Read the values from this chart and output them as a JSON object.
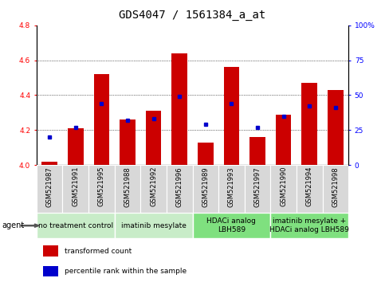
{
  "title": "GDS4047 / 1561384_a_at",
  "samples": [
    "GSM521987",
    "GSM521991",
    "GSM521995",
    "GSM521988",
    "GSM521992",
    "GSM521996",
    "GSM521989",
    "GSM521993",
    "GSM521997",
    "GSM521990",
    "GSM521994",
    "GSM521998"
  ],
  "transformed_count": [
    4.02,
    4.21,
    4.52,
    4.26,
    4.31,
    4.64,
    4.13,
    4.56,
    4.16,
    4.29,
    4.47,
    4.43
  ],
  "percentile_rank": [
    20,
    27,
    44,
    32,
    33,
    49,
    29,
    44,
    27,
    35,
    42,
    41
  ],
  "ylim_left": [
    4.0,
    4.8
  ],
  "ylim_right": [
    0,
    100
  ],
  "yticks_left": [
    4.0,
    4.2,
    4.4,
    4.6,
    4.8
  ],
  "yticks_right": [
    0,
    25,
    50,
    75,
    100
  ],
  "ytick_labels_right": [
    "0",
    "25",
    "50",
    "75",
    "100%"
  ],
  "bar_color": "#cc0000",
  "dot_color": "#0000cc",
  "agent_groups": [
    {
      "label": "no treatment control",
      "start": 0,
      "end": 3
    },
    {
      "label": "imatinib mesylate",
      "start": 3,
      "end": 6
    },
    {
      "label": "HDACi analog\nLBH589",
      "start": 6,
      "end": 9
    },
    {
      "label": "imatinib mesylate +\nHDACi analog LBH589",
      "start": 9,
      "end": 12
    }
  ],
  "agent_group_colors": [
    "#c8ecc8",
    "#c8ecc8",
    "#7fe07f",
    "#7fe07f"
  ],
  "legend_items": [
    {
      "color": "#cc0000",
      "label": "transformed count"
    },
    {
      "color": "#0000cc",
      "label": "percentile rank within the sample"
    }
  ],
  "title_fontsize": 10,
  "tick_fontsize": 6.5,
  "sample_fontsize": 6.0,
  "agent_fontsize": 6.5
}
